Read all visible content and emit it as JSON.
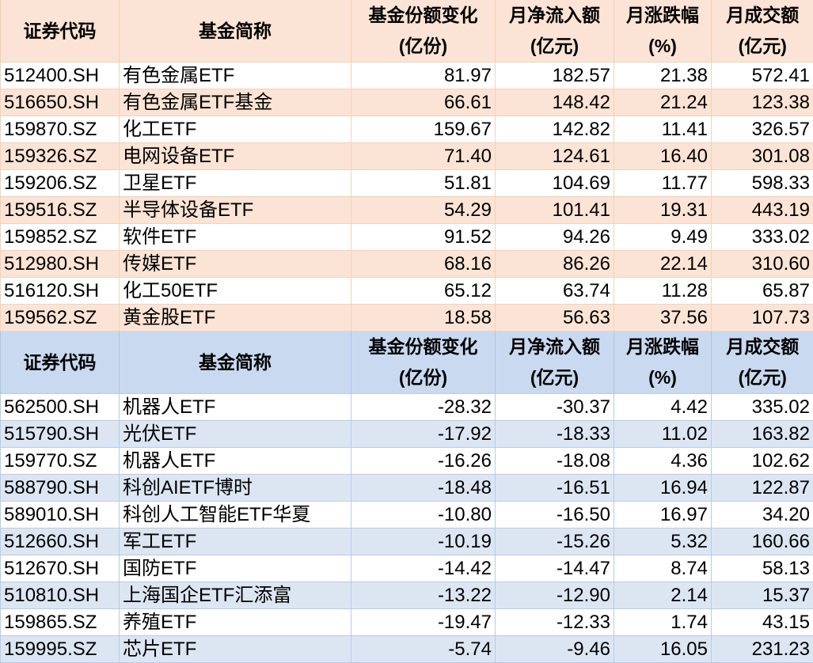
{
  "headers": [
    {
      "line1": "证券代码",
      "line2": ""
    },
    {
      "line1": "基金简称",
      "line2": ""
    },
    {
      "line1": "基金份额变化",
      "line2": "(亿份)"
    },
    {
      "line1": "月净流入额",
      "line2": "(亿元)"
    },
    {
      "line1": "月涨跌幅",
      "line2": "(%)"
    },
    {
      "line1": "月成交额",
      "line2": "(亿元)"
    }
  ],
  "colors": {
    "top_header": "#fbe4d5",
    "bottom_header": "#c9daf0",
    "bottom_alt_row": "#dce6f2"
  },
  "top_rows": [
    [
      "512400.SH",
      "有色金属ETF",
      "81.97",
      "182.57",
      "21.38",
      "572.41"
    ],
    [
      "516650.SH",
      "有色金属ETF基金",
      "66.61",
      "148.42",
      "21.24",
      "123.38"
    ],
    [
      "159870.SZ",
      "化工ETF",
      "159.67",
      "142.82",
      "11.41",
      "326.57"
    ],
    [
      "159326.SZ",
      "电网设备ETF",
      "71.40",
      "124.61",
      "16.40",
      "301.08"
    ],
    [
      "159206.SZ",
      "卫星ETF",
      "51.81",
      "104.69",
      "11.77",
      "598.33"
    ],
    [
      "159516.SZ",
      "半导体设备ETF",
      "54.29",
      "101.41",
      "19.31",
      "443.19"
    ],
    [
      "159852.SZ",
      "软件ETF",
      "91.52",
      "94.26",
      "9.49",
      "333.02"
    ],
    [
      "512980.SH",
      "传媒ETF",
      "68.16",
      "86.26",
      "22.14",
      "310.60"
    ],
    [
      "516120.SH",
      "化工50ETF",
      "65.12",
      "63.74",
      "11.28",
      "65.87"
    ],
    [
      "159562.SZ",
      "黄金股ETF",
      "18.58",
      "56.63",
      "37.56",
      "107.73"
    ]
  ],
  "bottom_rows": [
    [
      "562500.SH",
      "机器人ETF",
      "-28.32",
      "-30.37",
      "4.42",
      "335.02"
    ],
    [
      "515790.SH",
      "光伏ETF",
      "-17.92",
      "-18.33",
      "11.02",
      "163.82"
    ],
    [
      "159770.SZ",
      "机器人ETF",
      "-16.26",
      "-18.08",
      "4.36",
      "102.62"
    ],
    [
      "588790.SH",
      "科创AIETF博时",
      "-18.48",
      "-16.51",
      "16.94",
      "122.87"
    ],
    [
      "589010.SH",
      "科创人工智能ETF华夏",
      "-10.80",
      "-16.50",
      "16.97",
      "34.20"
    ],
    [
      "512660.SH",
      "军工ETF",
      "-10.19",
      "-15.26",
      "5.32",
      "160.66"
    ],
    [
      "512670.SH",
      "国防ETF",
      "-14.42",
      "-14.47",
      "8.74",
      "58.13"
    ],
    [
      "510810.SH",
      "上海国企ETF汇添富",
      "-13.22",
      "-12.90",
      "2.14",
      "15.37"
    ],
    [
      "159865.SZ",
      "养殖ETF",
      "-19.47",
      "-12.33",
      "1.74",
      "43.15"
    ],
    [
      "159995.SZ",
      "芯片ETF",
      "-5.74",
      "-9.46",
      "16.05",
      "231.23"
    ]
  ]
}
